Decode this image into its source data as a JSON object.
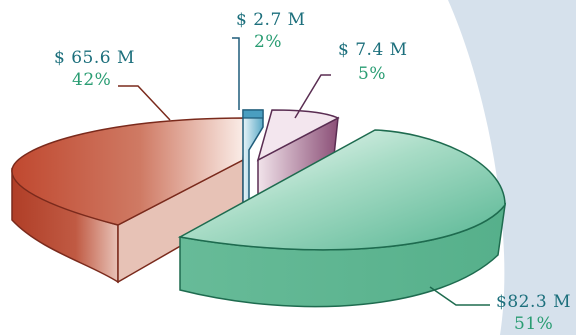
{
  "chart_data": {
    "type": "pie",
    "style": "3d-exploded",
    "slices": [
      {
        "value_label": "$ 65.6 M",
        "value_millions": 65.6,
        "percent_label": "42%",
        "percent": 42,
        "color": "#b8442e"
      },
      {
        "value_label": "$ 2.7 M",
        "value_millions": 2.7,
        "percent_label": "2%",
        "percent": 2,
        "color": "#5aa9c6"
      },
      {
        "value_label": "$ 7.4 M",
        "value_millions": 7.4,
        "percent_label": "5%",
        "percent": 5,
        "color": "#8e5a7c"
      },
      {
        "value_label": "$82.3 M",
        "value_millions": 82.3,
        "percent_label": "51%",
        "percent": 51,
        "color": "#3aa883"
      }
    ]
  },
  "colors": {
    "background_panel": "#d6e1ec",
    "value_text": "#1c6f7c",
    "percent_text": "#2a9d73"
  }
}
